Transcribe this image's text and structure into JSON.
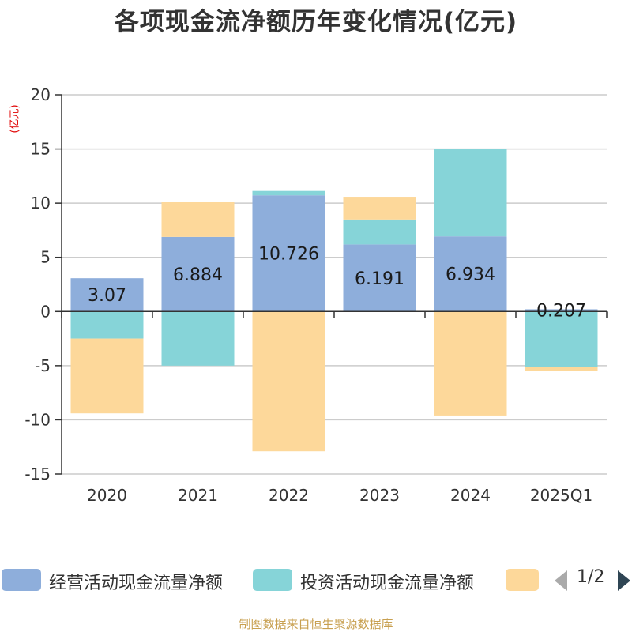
{
  "title": "各项现金流净额历年变化情况(亿元)",
  "unit_label": "(亿元)",
  "source": "制图数据来自恒生聚源数据库",
  "pager": {
    "text": "1/2"
  },
  "colors": {
    "operating": "#8eaedb",
    "investing": "#86d4d8",
    "financing": "#fdd89a",
    "unit": "#e00000",
    "source": "#c8a050",
    "pager_prev": "#aaaaaa",
    "pager_next": "#2f4554"
  },
  "legend": [
    {
      "label": "经营活动现金流量净额",
      "color": "#8eaedb"
    },
    {
      "label": "投资活动现金流量净额",
      "color": "#86d4d8"
    },
    {
      "label": "",
      "color": "#fdd89a"
    }
  ],
  "chart_data": {
    "type": "bar",
    "stacked": true,
    "title": "各项现金流净额历年变化情况(亿元)",
    "ylabel": "(亿元)",
    "xlabel": "",
    "ylim": [
      -15,
      20
    ],
    "yticks": [
      20,
      15,
      10,
      5,
      0,
      -5,
      -10,
      -15
    ],
    "grid": true,
    "legend_position": "bottom",
    "categories": [
      "2020",
      "2021",
      "2022",
      "2023",
      "2024",
      "2025Q1"
    ],
    "series": [
      {
        "name": "经营活动现金流量净额",
        "color": "#8eaedb",
        "values": [
          3.07,
          6.884,
          10.726,
          6.191,
          6.934,
          0.207
        ],
        "labels": [
          "3.07",
          "6.884",
          "10.726",
          "6.191",
          "6.934",
          "0.207"
        ]
      },
      {
        "name": "投资活动现金流量净额",
        "color": "#86d4d8",
        "values": [
          -2.5,
          -5.0,
          0.4,
          2.3,
          8.1,
          -5.1
        ]
      },
      {
        "name": "",
        "color": "#fdd89a",
        "values": [
          -6.9,
          3.2,
          -12.9,
          2.1,
          -9.6,
          -0.4
        ]
      }
    ]
  }
}
